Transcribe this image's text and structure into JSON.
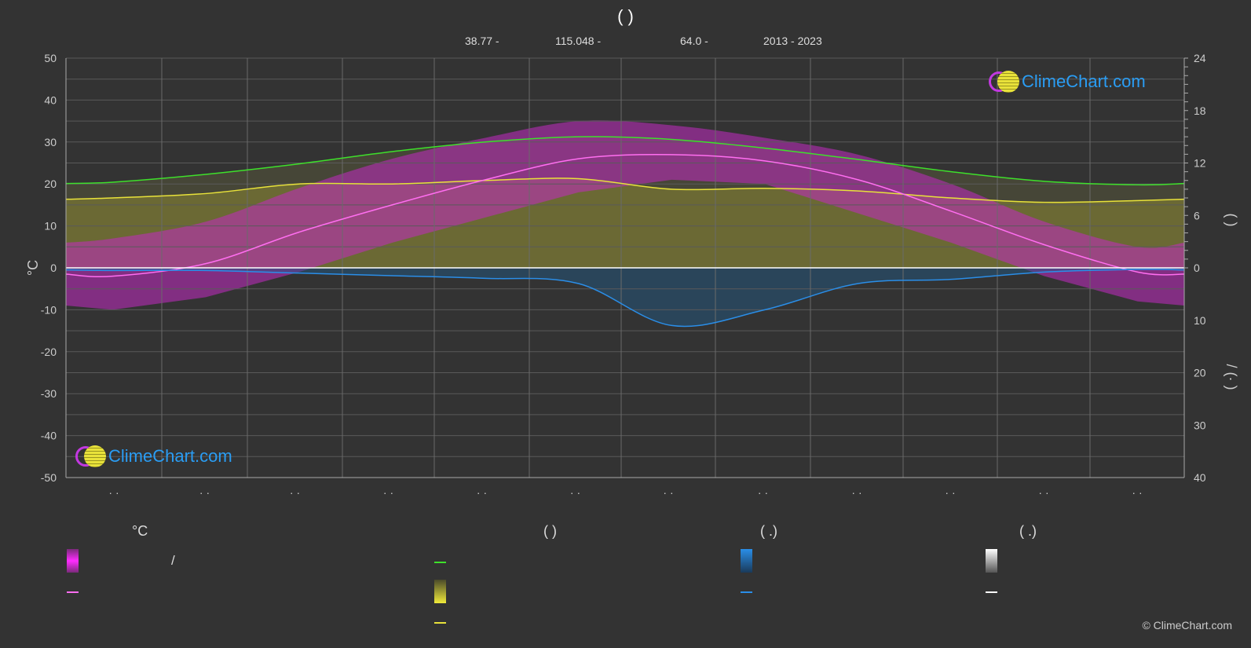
{
  "title": "(            )",
  "meta": {
    "lat": "38.77 -",
    "lon": "115.048 -",
    "elev": "64.0 -",
    "period": "2013 - 2023"
  },
  "logo_text": "ClimeChart.com",
  "copyright": "© ClimeChart.com",
  "legend": {
    "col1_header": "°C",
    "col1_slash": "/",
    "col2_header": "(          )",
    "col3_header": "(   .)",
    "col4_header": "(   .)"
  },
  "colors": {
    "background": "#333333",
    "daylight": "#3ee02b",
    "sunshine": "#e8e23a",
    "avg_temp": "#ff6ef0",
    "temp_range": "#e020e0",
    "precip": "#2a8ee8",
    "snow": "#dddddd",
    "logo": "#2a9df4"
  },
  "chart_data": {
    "type": "line",
    "title": "",
    "left_axis": {
      "label": "°C",
      "min": -50,
      "max": 50,
      "ticks": [
        50,
        40,
        30,
        20,
        10,
        0,
        -10,
        -20,
        -30,
        -40,
        -50
      ]
    },
    "right_axis_top": {
      "label": "(        )",
      "min": 0,
      "max": 24,
      "ticks": [
        24,
        18,
        12,
        6,
        0
      ]
    },
    "right_axis_bottom": {
      "label": "/   (·  )",
      "min": 0,
      "max": 40,
      "ticks": [
        0,
        10,
        20,
        30,
        40
      ]
    },
    "x_tick_labels": [
      "· ·",
      "· ·",
      "· ·",
      "· ·",
      "· ·",
      "· ·",
      "· ·",
      "· ·",
      "· ·",
      "· ·",
      "· ·",
      "· ·"
    ],
    "grid": true,
    "month_centers": [
      0.5,
      1.5,
      2.5,
      3.5,
      4.5,
      5.5,
      6.5,
      7.5,
      8.5,
      9.5,
      10.5,
      11.5
    ],
    "series": [
      {
        "key": "daylight",
        "axis": "hours",
        "values": [
          9.8,
          10.7,
          11.9,
          13.3,
          14.4,
          15.0,
          14.7,
          13.7,
          12.4,
          11.0,
          9.9,
          9.5
        ]
      },
      {
        "key": "sunshine",
        "axis": "hours",
        "values": [
          8.0,
          8.5,
          9.6,
          9.6,
          10.0,
          10.2,
          9.0,
          9.1,
          8.8,
          8.0,
          7.5,
          7.7
        ]
      },
      {
        "key": "avg_temp",
        "axis": "celsius",
        "values": [
          -2.0,
          1.0,
          8.5,
          15.0,
          21.0,
          26.0,
          27.0,
          25.5,
          21.0,
          13.5,
          5.5,
          -1.0
        ]
      },
      {
        "key": "precip",
        "axis": "mm",
        "values": [
          0.5,
          0.5,
          1.0,
          1.5,
          2.0,
          3.0,
          11.0,
          8.0,
          3.0,
          2.2,
          0.8,
          0.3
        ]
      }
    ],
    "temp_max_band": [
      7,
      11,
      19,
      26,
      31,
      35,
      34,
      31,
      27,
      20,
      11,
      5
    ],
    "temp_min_band": [
      -10,
      -7,
      -1,
      6,
      12,
      18,
      21,
      20,
      13,
      6,
      -2,
      -8
    ]
  }
}
